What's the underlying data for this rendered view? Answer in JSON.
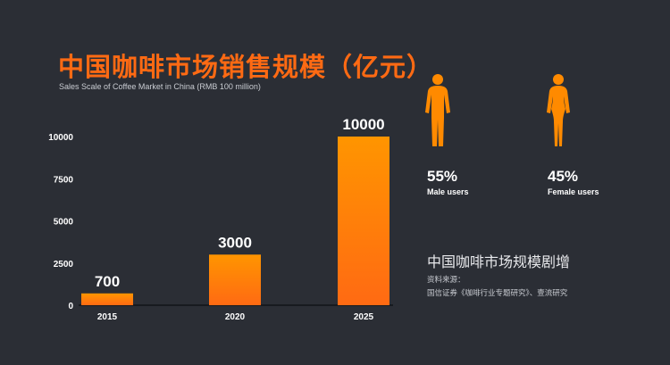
{
  "title": "中国咖啡市场销售规模（亿元）",
  "subtitle": "Sales Scale of Coffee Market in China (RMB 100 million)",
  "chart_data": {
    "type": "bar",
    "categories": [
      "2015",
      "2020",
      "2025"
    ],
    "values": [
      700,
      3000,
      10000
    ],
    "data_labels": [
      "700",
      "3000",
      "10000"
    ],
    "yticks": [
      "0",
      "2500",
      "5000",
      "7500",
      "10000"
    ],
    "ylim": [
      0,
      10000
    ],
    "title": "中国咖啡市场销售规模（亿元）",
    "subtitle": "Sales Scale of Coffee Market in China (RMB 100 million)",
    "xlabel": "",
    "ylabel": "",
    "grid": false,
    "bar_color_top": "#ff9500",
    "bar_color_bottom": "#ff6a13"
  },
  "gender": [
    {
      "icon": "male-figure-icon",
      "percent": "55%",
      "label": "Male users"
    },
    {
      "icon": "female-figure-icon",
      "percent": "45%",
      "label": "Female users"
    }
  ],
  "headline": "中国咖啡市场规模剧增",
  "source_label": "资料来源：",
  "source_text": "国信证券《咖啡行业专题研究》、壹流研究",
  "colors": {
    "accent": "#ff6a13",
    "accent_light": "#ff9500",
    "background": "#2b2e35"
  }
}
